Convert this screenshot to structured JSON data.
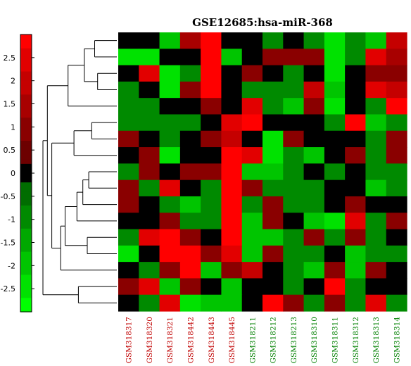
{
  "chart_data": {
    "type": "heatmap",
    "title": "GSE12685:hsa-miR-368",
    "columns": [
      {
        "label": "GSM318317",
        "group": "red"
      },
      {
        "label": "GSM318320",
        "group": "red"
      },
      {
        "label": "GSM318321",
        "group": "red"
      },
      {
        "label": "GSM318442",
        "group": "red"
      },
      {
        "label": "GSM318443",
        "group": "red"
      },
      {
        "label": "GSM318445",
        "group": "red"
      },
      {
        "label": "GSM318211",
        "group": "green"
      },
      {
        "label": "GSM318212",
        "group": "green"
      },
      {
        "label": "GSM318213",
        "group": "green"
      },
      {
        "label": "GSM318310",
        "group": "green"
      },
      {
        "label": "GSM318311",
        "group": "green"
      },
      {
        "label": "GSM318312",
        "group": "green"
      },
      {
        "label": "GSM318313",
        "group": "green"
      },
      {
        "label": "GSM318314",
        "group": "green"
      }
    ],
    "values": [
      [
        0,
        0,
        -2,
        1.5,
        3,
        0,
        0,
        -1,
        0,
        -1,
        -2.5,
        -1,
        -2,
        2
      ],
      [
        -2.5,
        -2.5,
        0,
        0,
        3,
        -2,
        0,
        1,
        1,
        1,
        -2.5,
        -1,
        2.5,
        1.5
      ],
      [
        0,
        2.5,
        -2.5,
        -1,
        3,
        0,
        1,
        0,
        -1,
        0,
        -2.5,
        0,
        1,
        1
      ],
      [
        -1,
        0,
        -2.5,
        1,
        3,
        0,
        -1,
        -1,
        -1,
        2,
        -2,
        0,
        2.5,
        2
      ],
      [
        -1,
        -1,
        0,
        0,
        1,
        0,
        2.5,
        -1,
        -2,
        1,
        -2.5,
        0,
        -1,
        3
      ],
      [
        -1,
        -1,
        -1,
        -1,
        0,
        2.5,
        3,
        0,
        0,
        0,
        -1,
        3,
        -2,
        -1
      ],
      [
        1,
        0,
        -1,
        0,
        1,
        2,
        0,
        -2.5,
        1,
        0,
        0,
        0,
        -1,
        1
      ],
      [
        0,
        1,
        -2.5,
        0,
        0,
        3,
        2.5,
        -2.5,
        -1,
        -2,
        0,
        1,
        -1,
        1
      ],
      [
        -1,
        1,
        0,
        1,
        1,
        3,
        -2,
        -2,
        -1,
        0,
        -1,
        0,
        -1,
        -1
      ],
      [
        1,
        -1,
        2.5,
        0,
        -1,
        3,
        1,
        -1,
        -1,
        -1,
        0,
        0,
        -2,
        -1
      ],
      [
        1,
        0,
        -1,
        -2,
        -1,
        3,
        -1,
        1,
        -1,
        -1,
        0,
        1,
        0,
        0
      ],
      [
        0,
        0,
        1,
        -1,
        -1,
        3,
        -2,
        1,
        0,
        -2,
        -2.5,
        2.5,
        -1,
        1
      ],
      [
        -1,
        2.5,
        3,
        1,
        0,
        3,
        -2,
        -2,
        -1,
        1,
        -1,
        1,
        -1,
        0
      ],
      [
        -2.5,
        0,
        3,
        3,
        1,
        2.5,
        -2,
        1,
        -1,
        -1,
        0,
        -2,
        -1,
        -1
      ],
      [
        0,
        -1,
        1,
        3,
        -2,
        1,
        2,
        0,
        -1,
        -2,
        1,
        -2,
        1,
        0
      ],
      [
        1,
        2.5,
        -2,
        1,
        0,
        -2,
        0,
        0,
        -1,
        0,
        3,
        -1,
        0,
        0
      ],
      [
        0,
        -1,
        2.5,
        -2.5,
        -2,
        -2,
        0,
        3,
        1,
        -1,
        1,
        -1,
        2.5,
        -1
      ]
    ],
    "colorbar": {
      "ticks": [
        "2.5",
        "2",
        "1.5",
        "1",
        "0.5",
        "0",
        "-0.5",
        "-1",
        "-1.5",
        "-2",
        "-2.5"
      ],
      "range": [
        -3,
        3
      ]
    },
    "dendrogram": {
      "side": "left",
      "merges": [
        [
          0,
          1,
          0.3
        ],
        [
          2,
          3,
          0.26
        ],
        [
          17,
          18,
          0.44
        ],
        [
          19,
          4,
          0.66
        ],
        [
          5,
          6,
          0.34
        ],
        [
          21,
          7,
          0.58
        ],
        [
          8,
          9,
          0.38
        ],
        [
          23,
          10,
          0.46
        ],
        [
          24,
          11,
          0.54
        ],
        [
          12,
          13,
          0.4
        ],
        [
          25,
          26,
          0.7
        ],
        [
          27,
          14,
          0.76
        ],
        [
          22,
          28,
          0.88
        ],
        [
          15,
          16,
          0.52
        ],
        [
          20,
          29,
          0.94
        ],
        [
          31,
          30,
          1.0
        ]
      ]
    },
    "colors": {
      "high": "#ff0000",
      "mid": "#000000",
      "low": "#00ff00",
      "label_group_red": "#c00000",
      "label_group_green": "#008000"
    }
  }
}
